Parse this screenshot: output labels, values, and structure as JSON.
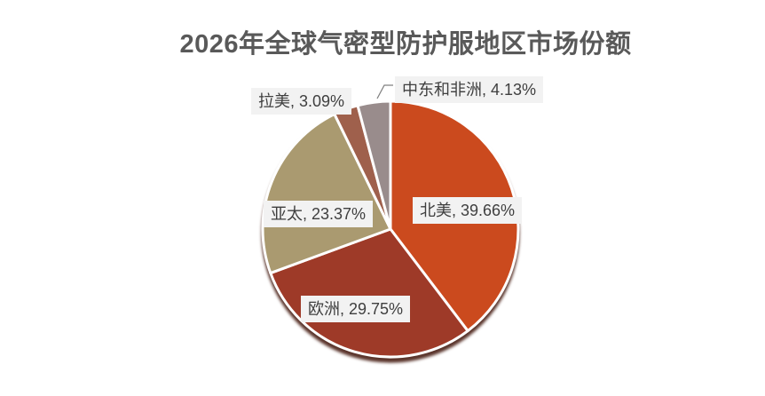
{
  "page": {
    "background": "#FFFFFF",
    "title_color": "#595959"
  },
  "chart_data": {
    "type": "pie",
    "title": "2026年全球气密型防护服地区市场份额",
    "categories": [
      "北美",
      "欧洲",
      "亚太",
      "拉美",
      "中东和非洲"
    ],
    "values": [
      39.66,
      29.75,
      23.37,
      3.09,
      4.13
    ],
    "unit": "%",
    "colors": [
      "#CB4A1E",
      "#9E3A28",
      "#AA9A70",
      "#9F604C",
      "#998C8C"
    ],
    "slice_ids": [
      "north-america",
      "europe",
      "asia-pacific",
      "latin-america",
      "middle-east-africa"
    ],
    "data_labels": [
      "北美, 39.66%",
      "欧洲, 29.75%",
      "亚太, 23.37%",
      "拉美, 3.09%",
      "中东和非洲, 4.13%"
    ],
    "start_angle": 0,
    "clockwise": true,
    "legend_position": "none",
    "label_style": {
      "background": "#F2F2F2",
      "text_color": "#3F3F3F"
    },
    "leader_line_color": "#808080",
    "shadow_color": "#3D1006"
  }
}
